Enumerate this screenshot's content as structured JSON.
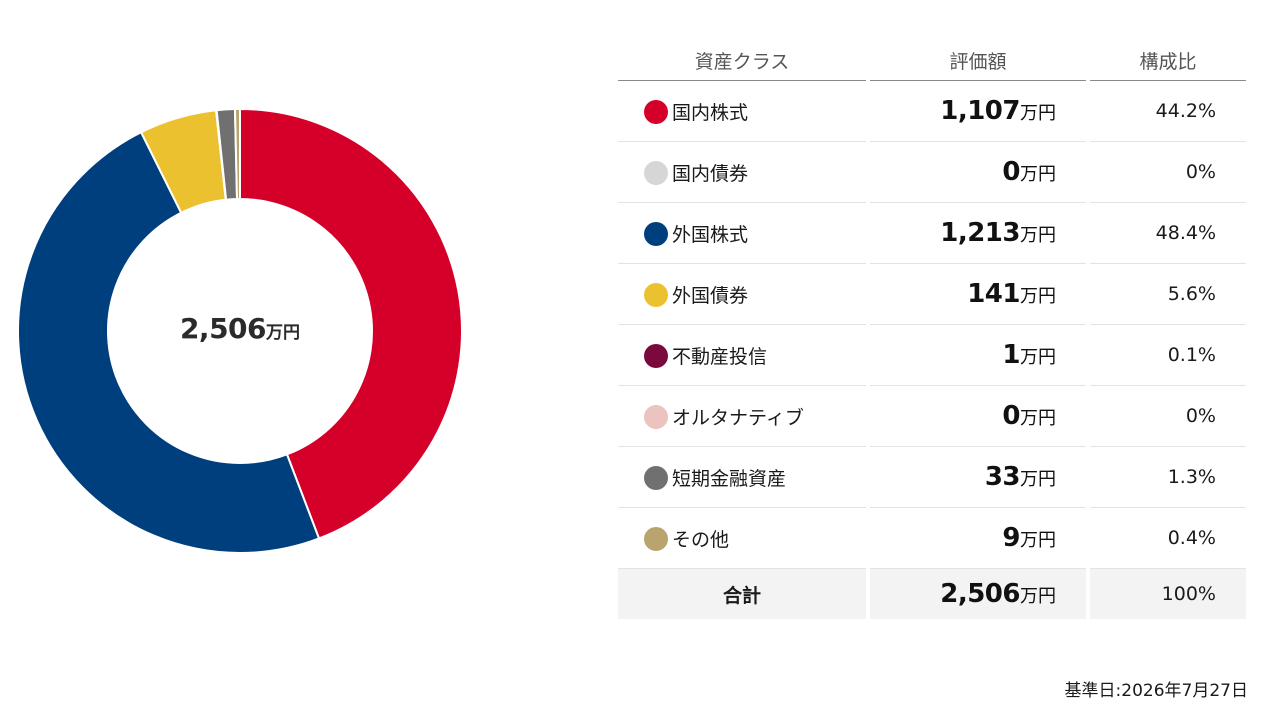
{
  "chart_data": {
    "type": "pie",
    "variant": "donut",
    "categories": [
      "国内株式",
      "国内債券",
      "外国株式",
      "外国債券",
      "不動産投信",
      "オルタナティブ",
      "短期金融資産",
      "その他"
    ],
    "values": [
      1107,
      0,
      1213,
      141,
      1,
      0,
      33,
      9
    ],
    "percents": [
      "44.2%",
      "0%",
      "48.4%",
      "5.6%",
      "0.1%",
      "0%",
      "1.3%",
      "0.4%"
    ],
    "colors": [
      "#d4002a",
      "#d6d6d6",
      "#003f7d",
      "#ecc12f",
      "#7a0a3e",
      "#ebc3bf",
      "#707070",
      "#b9a46d"
    ],
    "unit": "万円",
    "center_total": "2,506",
    "legend": "right"
  },
  "table": {
    "headers": {
      "class": "資産クラス",
      "value": "評価額",
      "ratio": "構成比"
    },
    "rows": [
      {
        "name": "国内株式",
        "value": "1,107",
        "unit": "万円",
        "ratio": "44.2%"
      },
      {
        "name": "国内債券",
        "value": "0",
        "unit": "万円",
        "ratio": "0%"
      },
      {
        "name": "外国株式",
        "value": "1,213",
        "unit": "万円",
        "ratio": "48.4%"
      },
      {
        "name": "外国債券",
        "value": "141",
        "unit": "万円",
        "ratio": "5.6%"
      },
      {
        "name": "不動産投信",
        "value": "1",
        "unit": "万円",
        "ratio": "0.1%"
      },
      {
        "name": "オルタナティブ",
        "value": "0",
        "unit": "万円",
        "ratio": "0%"
      },
      {
        "name": "短期金融資産",
        "value": "33",
        "unit": "万円",
        "ratio": "1.3%"
      },
      {
        "name": "その他",
        "value": "9",
        "unit": "万円",
        "ratio": "0.4%"
      }
    ],
    "total": {
      "name": "合計",
      "value": "2,506",
      "unit": "万円",
      "ratio": "100%"
    }
  },
  "base_date": "基準日:2026年7月27日"
}
